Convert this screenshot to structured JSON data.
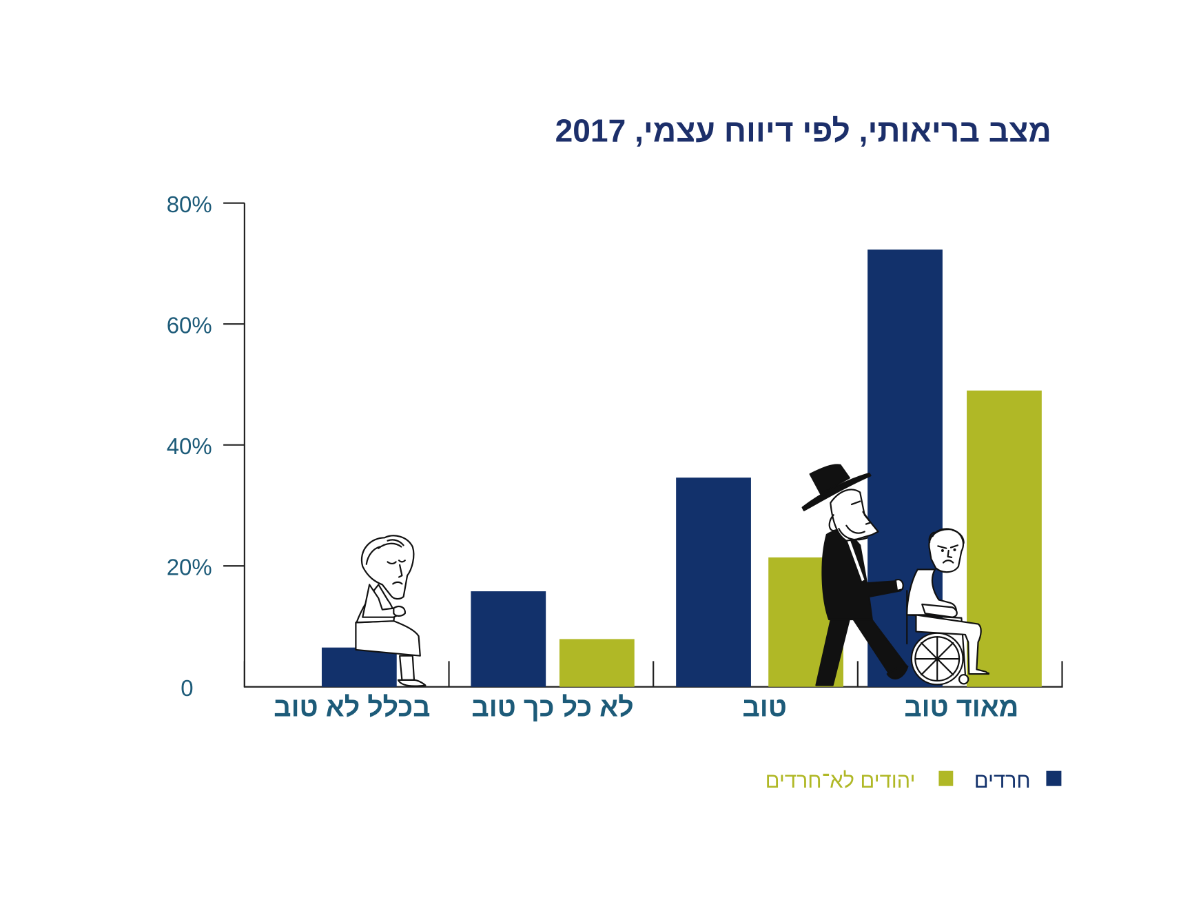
{
  "colors": {
    "title": "#1c2f6a",
    "axis_labels": "#1d5b79",
    "axis_line": "#222222"
  },
  "chart_data": {
    "type": "bar",
    "title": "מצב בריאותי, לפי דיווח עצמי, 2017",
    "xlabel": "",
    "ylabel": "",
    "categories": [
      "בכלל לא טוב",
      "לא כל כך טוב",
      "טוב",
      "מאוד טוב"
    ],
    "series": [
      {
        "name": "חרדים",
        "color": "#12316b",
        "values": [
          6.5,
          15.8,
          34.6,
          72.3
        ]
      },
      {
        "name": "יהודים לא־חרדים",
        "color": "#b0b826",
        "values": [
          null,
          7.9,
          21.4,
          49.0
        ]
      }
    ],
    "ylim": [
      0,
      80
    ],
    "y_ticks": [
      {
        "value": 0,
        "label": "0"
      },
      {
        "value": 20,
        "label": "20%"
      },
      {
        "value": 40,
        "label": "40%"
      },
      {
        "value": 60,
        "label": "60%"
      },
      {
        "value": 80,
        "label": "80%"
      }
    ],
    "grid": false,
    "legend_position": "bottom-right"
  }
}
